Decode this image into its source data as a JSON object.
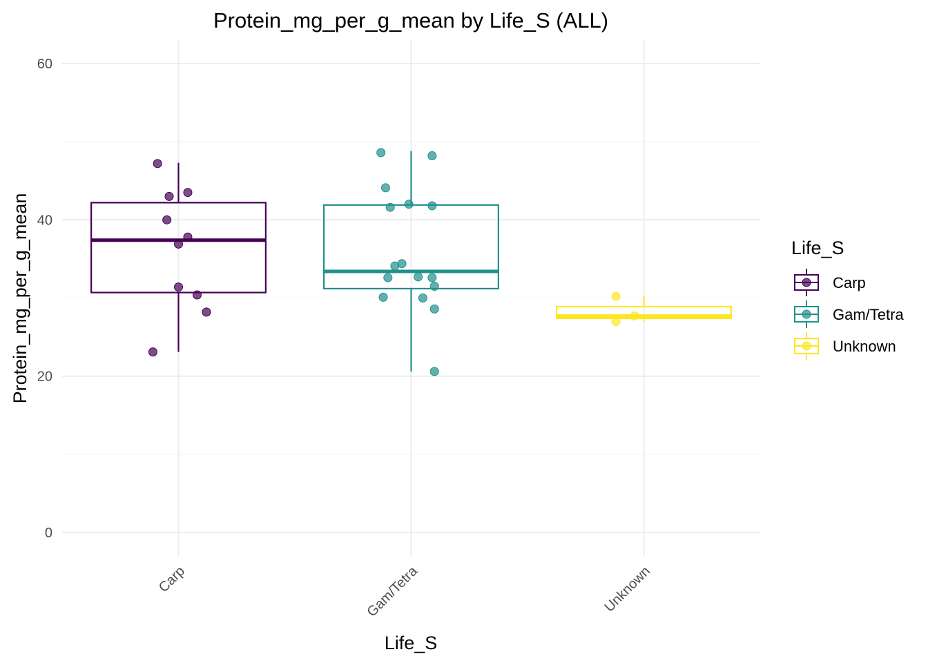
{
  "chart_data": {
    "type": "boxplot",
    "title": "Protein_mg_per_g_mean by Life_S (ALL)",
    "xlabel": "Life_S",
    "ylabel": "Protein_mg_per_g_mean",
    "ylim": [
      -3,
      63
    ],
    "yticks": [
      0,
      20,
      40,
      60
    ],
    "grid": true,
    "legend": {
      "title": "Life_S",
      "position": "right"
    },
    "categories": [
      "Carp",
      "Gam/Tetra",
      "Unknown"
    ],
    "series": [
      {
        "name": "Carp",
        "color": "#440154",
        "box": {
          "min": 23.1,
          "q1": 30.7,
          "median": 37.4,
          "q3": 42.2,
          "max": 47.3
        },
        "points": [
          {
            "offset": -0.09,
            "y": 47.2
          },
          {
            "offset": -0.04,
            "y": 43.0
          },
          {
            "offset": 0.04,
            "y": 43.5
          },
          {
            "offset": -0.05,
            "y": 40.0
          },
          {
            "offset": 0.04,
            "y": 37.8
          },
          {
            "offset": 0.0,
            "y": 36.9
          },
          {
            "offset": 0.0,
            "y": 31.4
          },
          {
            "offset": 0.08,
            "y": 30.4
          },
          {
            "offset": 0.12,
            "y": 28.2
          },
          {
            "offset": -0.11,
            "y": 23.1
          }
        ]
      },
      {
        "name": "Gam/Tetra",
        "color": "#21908C",
        "box": {
          "min": 20.6,
          "q1": 31.2,
          "median": 33.4,
          "q3": 41.9,
          "max": 48.8
        },
        "points": [
          {
            "offset": -0.13,
            "y": 48.6
          },
          {
            "offset": 0.09,
            "y": 48.2
          },
          {
            "offset": -0.11,
            "y": 44.1
          },
          {
            "offset": -0.09,
            "y": 41.6
          },
          {
            "offset": -0.01,
            "y": 42.0
          },
          {
            "offset": 0.09,
            "y": 41.8
          },
          {
            "offset": -0.07,
            "y": 34.1
          },
          {
            "offset": -0.04,
            "y": 34.4
          },
          {
            "offset": -0.1,
            "y": 32.6
          },
          {
            "offset": 0.03,
            "y": 32.7
          },
          {
            "offset": 0.09,
            "y": 32.6
          },
          {
            "offset": 0.1,
            "y": 31.5
          },
          {
            "offset": -0.12,
            "y": 30.1
          },
          {
            "offset": 0.05,
            "y": 30.0
          },
          {
            "offset": 0.1,
            "y": 28.6
          },
          {
            "offset": 0.1,
            "y": 20.6
          }
        ]
      },
      {
        "name": "Unknown",
        "color": "#FDE725",
        "box": {
          "min": 27.0,
          "q1": 27.4,
          "median": 27.7,
          "q3": 28.9,
          "max": 30.2
        },
        "points": [
          {
            "offset": -0.12,
            "y": 30.2
          },
          {
            "offset": -0.12,
            "y": 27.0
          },
          {
            "offset": -0.04,
            "y": 27.7
          }
        ]
      }
    ]
  }
}
